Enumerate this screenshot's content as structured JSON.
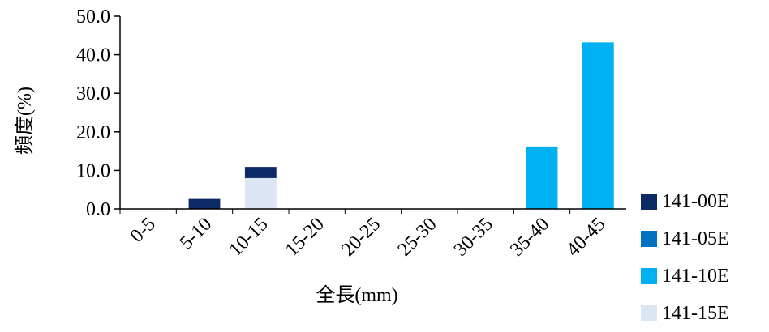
{
  "chart_data": {
    "type": "bar",
    "stacked": true,
    "title": "",
    "xlabel": "全長(mm)",
    "ylabel": "頻度(%)",
    "ylim": [
      0,
      50
    ],
    "yticks": [
      "0.0",
      "10.0",
      "20.0",
      "30.0",
      "40.0",
      "50.0"
    ],
    "grid": false,
    "legend_position": "right",
    "categories": [
      "0-5",
      "5-10",
      "10-15",
      "15-20",
      "20-25",
      "25-30",
      "30-35",
      "35-40",
      "40-45"
    ],
    "series": [
      {
        "name": "141-00E",
        "color": "#0d2a66",
        "values": [
          0,
          2.6,
          2.9,
          0,
          0,
          0,
          0,
          0,
          0
        ]
      },
      {
        "name": "141-05E",
        "color": "#0070c0",
        "values": [
          0,
          0,
          0,
          0,
          0,
          0,
          0,
          0,
          0
        ]
      },
      {
        "name": "141-10E",
        "color": "#00b0f0",
        "values": [
          0,
          0,
          0,
          0,
          0,
          0,
          0,
          16.2,
          43.2
        ]
      },
      {
        "name": "141-15E",
        "color": "#dce6f2",
        "values": [
          0,
          0,
          8.0,
          0,
          0,
          0,
          0,
          0,
          0
        ]
      }
    ]
  }
}
